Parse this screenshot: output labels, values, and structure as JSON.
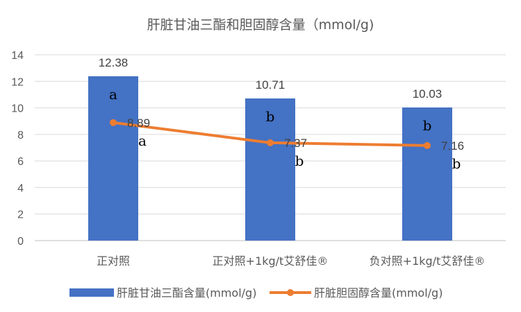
{
  "chart_data": {
    "type": "bar",
    "title": "肝脏甘油三酯和胆固醇含量（mmol/g)",
    "categories": [
      "正对照",
      "正对照+1kg/t艾舒佳®",
      "负对照+1kg/t艾舒佳®"
    ],
    "ylim": [
      0,
      14
    ],
    "yticks": [
      0,
      2,
      4,
      6,
      8,
      10,
      12,
      14
    ],
    "grid": true,
    "legend_position": "bottom",
    "series": [
      {
        "name": "肝脏甘油三酯含量(mmol/g)",
        "type": "bar",
        "color": "#4472C4",
        "values": [
          12.38,
          10.71,
          10.03
        ],
        "data_labels": [
          "12.38",
          "10.71",
          "10.03"
        ],
        "significance": [
          "a",
          "b",
          "b"
        ]
      },
      {
        "name": "肝脏胆固醇含量(mmol/g)",
        "type": "line",
        "color": "#ED7D31",
        "values": [
          8.89,
          7.37,
          7.16
        ],
        "data_labels": [
          "8.89",
          "7.37",
          "7.16"
        ],
        "significance": [
          "a",
          "b",
          "b"
        ]
      }
    ]
  }
}
